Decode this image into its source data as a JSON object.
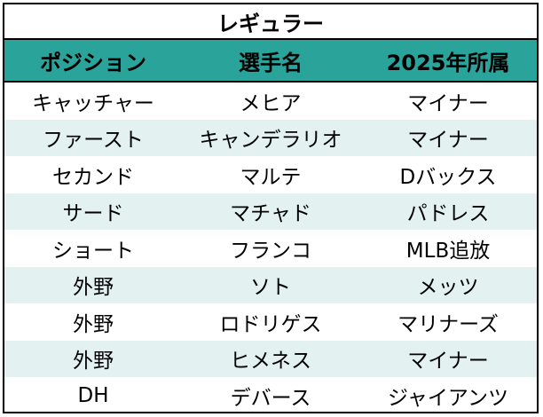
{
  "table": {
    "title": "レギュラー",
    "columns": [
      "ポジション",
      "選手名",
      "2025年所属"
    ],
    "rows": [
      [
        "キャッチャー",
        "メヒア",
        "マイナー"
      ],
      [
        "ファースト",
        "キャンデラリオ",
        "マイナー"
      ],
      [
        "セカンド",
        "マルテ",
        "Dバックス"
      ],
      [
        "サード",
        "マチャド",
        "パドレス"
      ],
      [
        "ショート",
        "フランコ",
        "MLB追放"
      ],
      [
        "外野",
        "ソト",
        "メッツ"
      ],
      [
        "外野",
        "ロドリゲス",
        "マリナーズ"
      ],
      [
        "外野",
        "ヒメネス",
        "マイナー"
      ],
      [
        "DH",
        "デバース",
        "ジャイアンツ"
      ]
    ]
  },
  "colors": {
    "header_bg": "#2aa49a",
    "alt_row_bg": "#e4f1f1",
    "border": "#000000"
  }
}
